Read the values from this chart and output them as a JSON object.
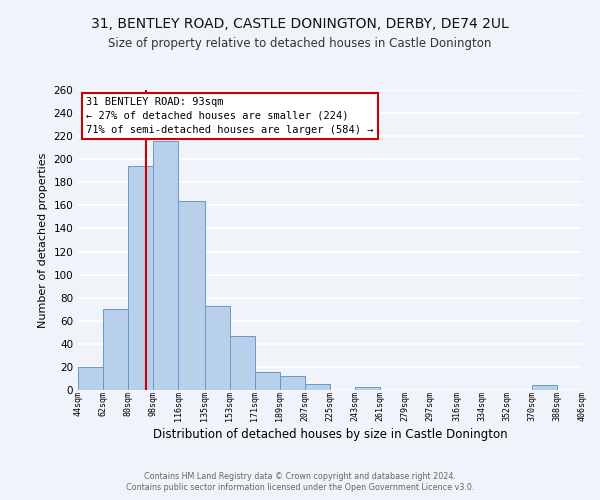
{
  "title": "31, BENTLEY ROAD, CASTLE DONINGTON, DERBY, DE74 2UL",
  "subtitle": "Size of property relative to detached houses in Castle Donington",
  "xlabel": "Distribution of detached houses by size in Castle Donington",
  "ylabel": "Number of detached properties",
  "bar_edges": [
    44,
    62,
    80,
    98,
    116,
    135,
    153,
    171,
    189,
    207,
    225,
    243,
    261,
    279,
    297,
    316,
    334,
    352,
    370,
    388,
    406
  ],
  "bar_heights": [
    20,
    70,
    194,
    216,
    164,
    73,
    47,
    16,
    12,
    5,
    0,
    3,
    0,
    0,
    0,
    0,
    0,
    0,
    4,
    0,
    0
  ],
  "bar_color": "#b8d0ea",
  "bar_edgecolor": "#6699cc",
  "vline_x": 93,
  "vline_color": "#cc0000",
  "ylim": [
    0,
    260
  ],
  "xlim": [
    44,
    406
  ],
  "annotation_title": "31 BENTLEY ROAD: 93sqm",
  "annotation_line1": "← 27% of detached houses are smaller (224)",
  "annotation_line2": "71% of semi-detached houses are larger (584) →",
  "annotation_box_facecolor": "#ffffff",
  "annotation_box_edgecolor": "#cc0000",
  "footer1": "Contains HM Land Registry data © Crown copyright and database right 2024.",
  "footer2": "Contains public sector information licensed under the Open Government Licence v3.0.",
  "tick_labels": [
    "44sqm",
    "62sqm",
    "80sqm",
    "98sqm",
    "116sqm",
    "135sqm",
    "153sqm",
    "171sqm",
    "189sqm",
    "207sqm",
    "225sqm",
    "243sqm",
    "261sqm",
    "279sqm",
    "297sqm",
    "316sqm",
    "334sqm",
    "352sqm",
    "370sqm",
    "388sqm",
    "406sqm"
  ],
  "tick_positions": [
    44,
    62,
    80,
    98,
    116,
    135,
    153,
    171,
    189,
    207,
    225,
    243,
    261,
    279,
    297,
    316,
    334,
    352,
    370,
    388,
    406
  ],
  "yticks": [
    0,
    20,
    40,
    60,
    80,
    100,
    120,
    140,
    160,
    180,
    200,
    220,
    240,
    260
  ],
  "fig_background": "#f0f4fa",
  "plot_background": "#f0f4fa",
  "grid_color": "#ffffff"
}
